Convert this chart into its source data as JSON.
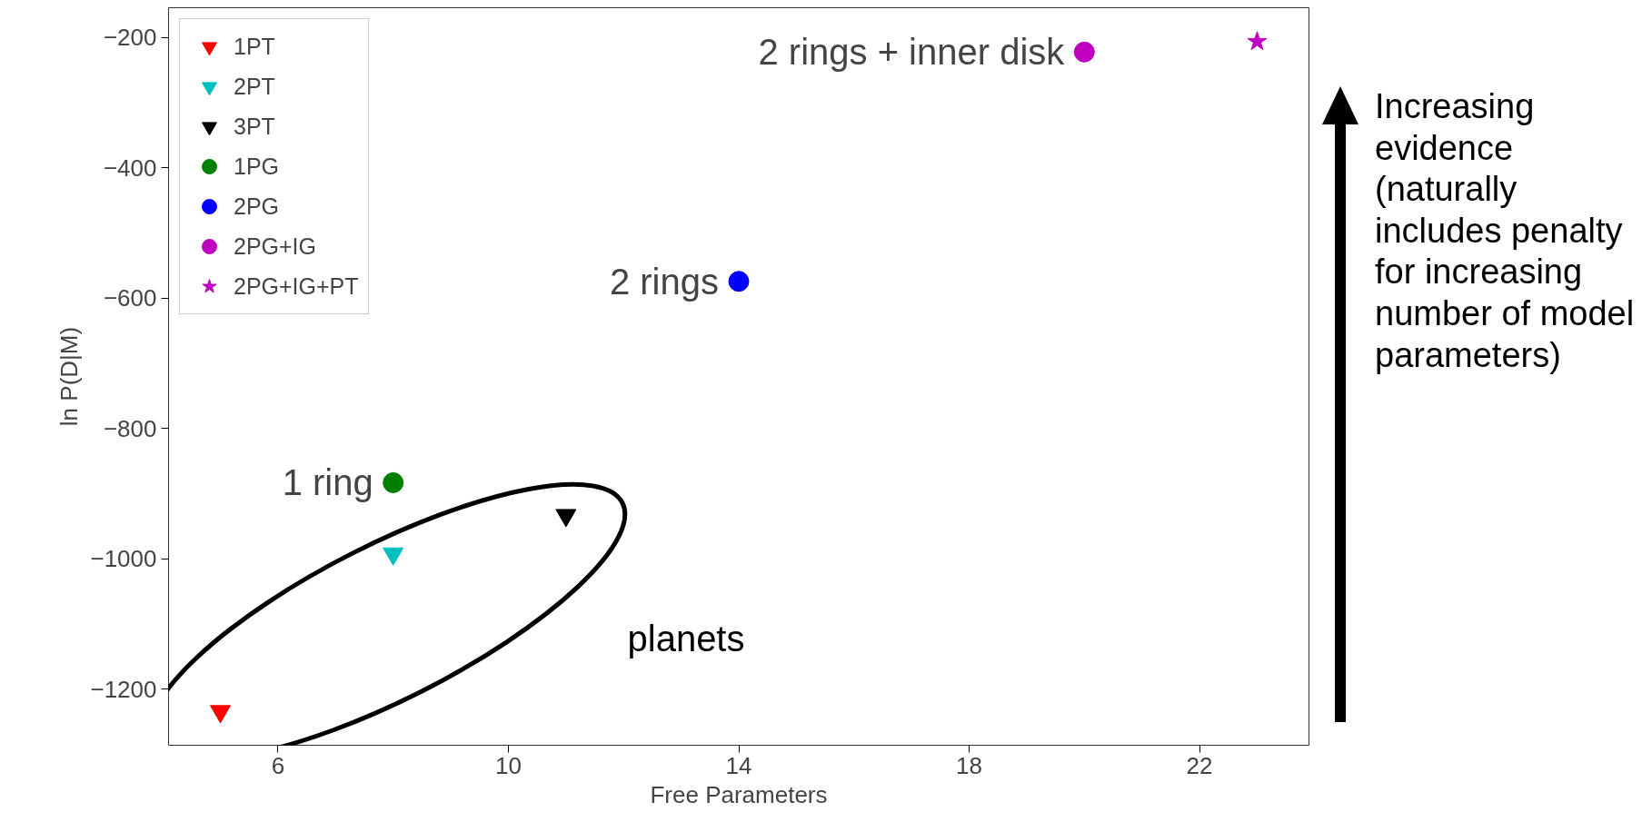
{
  "chart_data": {
    "type": "scatter",
    "xlabel": "Free Parameters",
    "ylabel": "ln P(D|M)",
    "xlim": [
      4.1,
      23.9
    ],
    "xticks": [
      6,
      10,
      14,
      18,
      22
    ],
    "ylim": [
      -1286,
      -154
    ],
    "yticks": [
      {
        "value": -1200,
        "label": "−1200"
      },
      {
        "value": -1000,
        "label": "−1000"
      },
      {
        "value": -800,
        "label": "−800"
      },
      {
        "value": -600,
        "label": "−600"
      },
      {
        "value": -400,
        "label": "−400"
      },
      {
        "value": -200,
        "label": "−200"
      }
    ],
    "grid": false,
    "legend": "top left",
    "series": [
      {
        "name": "1PT",
        "color": "#ff0000",
        "marker": "triangle",
        "x": [
          5
        ],
        "values": [
          -1234
        ]
      },
      {
        "name": "2PT",
        "color": "#00bfbf",
        "marker": "triangle",
        "x": [
          8
        ],
        "values": [
          -992
        ]
      },
      {
        "name": "3PT",
        "color": "#000000",
        "marker": "triangle",
        "x": [
          11
        ],
        "values": [
          -933
        ]
      },
      {
        "name": "1PG",
        "color": "#008000",
        "marker": "circle",
        "x": [
          8
        ],
        "values": [
          -883
        ]
      },
      {
        "name": "2PG",
        "color": "#0000ff",
        "marker": "circle",
        "x": [
          14
        ],
        "values": [
          -574
        ]
      },
      {
        "name": "2PG+IG",
        "color": "#bf00bf",
        "marker": "circle",
        "x": [
          20
        ],
        "values": [
          -222
        ]
      },
      {
        "name": "2PG+IG+PT",
        "color": "#bf00bf",
        "marker": "star",
        "x": [
          23
        ],
        "values": [
          -206
        ]
      }
    ],
    "annotations": [
      {
        "text": "2 rings + inner disk",
        "x": 20,
        "y": -222
      },
      {
        "text": "2 rings",
        "x": 14,
        "y": -574
      },
      {
        "text": "1 ring",
        "x": 8,
        "y": -883
      },
      "planets",
      "Increasing evidence (naturally includes penalty for increasing number of model parameters)"
    ]
  }
}
